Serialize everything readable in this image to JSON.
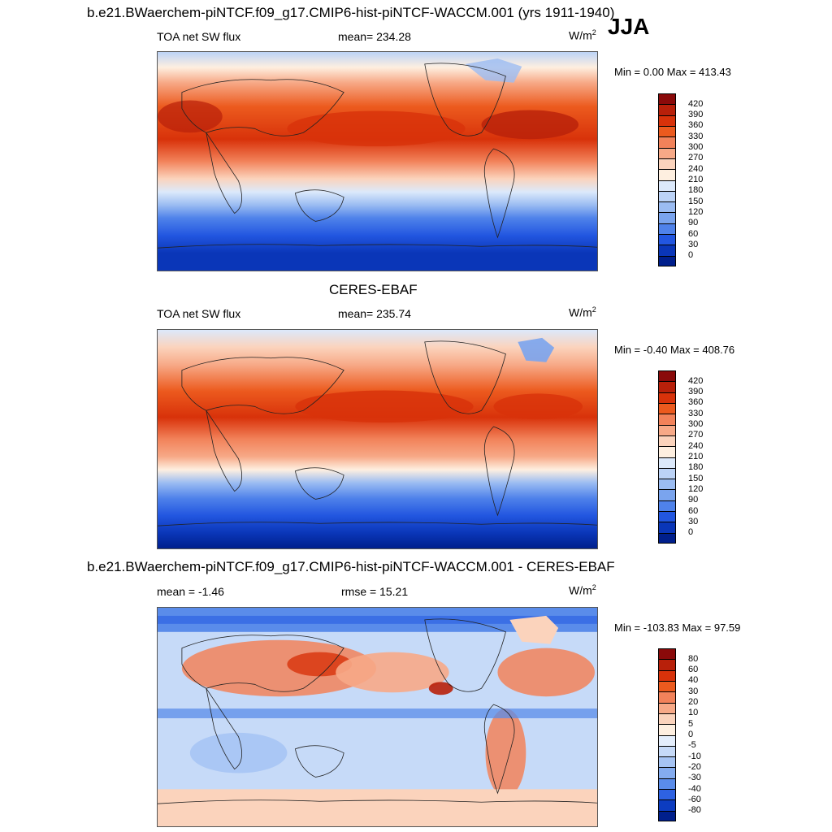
{
  "panel1": {
    "title": "b.e21.BWaerchem-piNTCF.f09_g17.CMIP6-hist-piNTCF-WACCM.001 (yrs 1911-1940)",
    "season": "JJA",
    "variable": "TOA net SW flux",
    "mean_text": "mean= 234.28",
    "unit": "W/m",
    "unit_exp": "2",
    "minmax": "Min =   0.00 Max = 413.43",
    "levels": [
      "420",
      "390",
      "360",
      "330",
      "300",
      "270",
      "240",
      "210",
      "180",
      "150",
      "120",
      "90",
      "60",
      "30",
      "0"
    ]
  },
  "panel2": {
    "title": "CERES-EBAF",
    "variable": "TOA net SW flux",
    "mean_text": "mean= 235.74",
    "unit": "W/m",
    "unit_exp": "2",
    "minmax": "Min =  -0.40 Max = 408.76",
    "levels": [
      "420",
      "390",
      "360",
      "330",
      "300",
      "270",
      "240",
      "210",
      "180",
      "150",
      "120",
      "90",
      "60",
      "30",
      "0"
    ]
  },
  "panel3": {
    "title": "b.e21.BWaerchem-piNTCF.f09_g17.CMIP6-hist-piNTCF-WACCM.001 - CERES-EBAF",
    "mean_text": "mean =  -1.46",
    "rmse_text": "rmse =  15.21",
    "unit": "W/m",
    "unit_exp": "2",
    "minmax": "Min = -103.83 Max =  97.59",
    "levels": [
      "80",
      "60",
      "40",
      "30",
      "20",
      "10",
      "5",
      "0",
      "-5",
      "-10",
      "-20",
      "-30",
      "-40",
      "-60",
      "-80"
    ]
  },
  "colors": {
    "abs_scale": [
      "#8a0a0a",
      "#b8200a",
      "#d8320a",
      "#ec5a1e",
      "#f2825a",
      "#f7a987",
      "#fbd3bc",
      "#feefe0",
      "#dce9fb",
      "#bcd3f7",
      "#9bbcf2",
      "#7aa4ee",
      "#4f82ea",
      "#2256e0",
      "#0a36b8",
      "#001f8c"
    ],
    "diff_scale": [
      "#8a0a0a",
      "#b8200a",
      "#d8320a",
      "#ec5a1e",
      "#f2825a",
      "#f7a987",
      "#fbd3bc",
      "#feefe0",
      "#e4eefc",
      "#c6daf8",
      "#a6c4f4",
      "#84acf0",
      "#5a8cea",
      "#2e62e2",
      "#0c3cc0",
      "#001f8c"
    ]
  }
}
